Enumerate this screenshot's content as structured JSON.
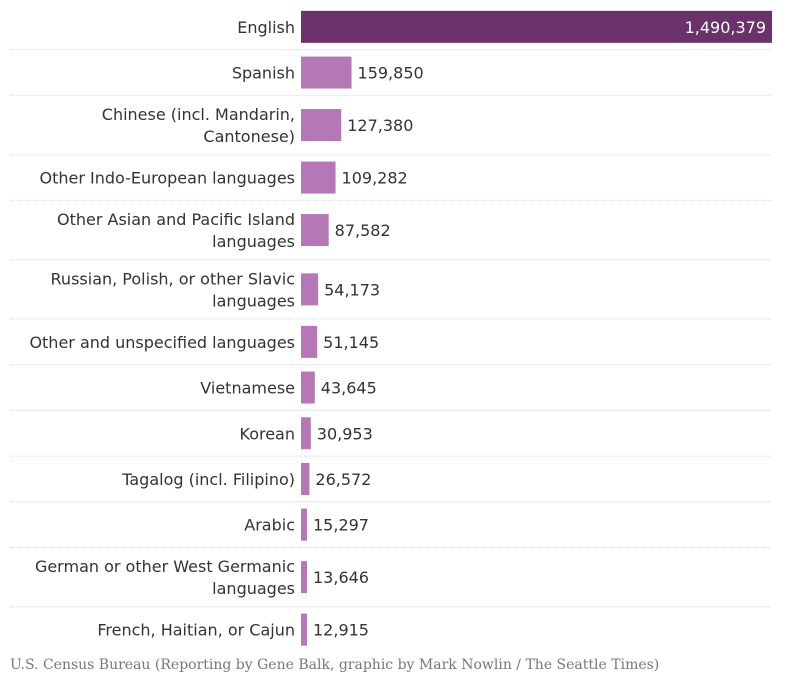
{
  "chart_data": {
    "type": "bar",
    "orientation": "horizontal",
    "categories": [
      [
        "English"
      ],
      [
        "Spanish"
      ],
      [
        "Chinese (incl. Mandarin,",
        "Cantonese)"
      ],
      [
        "Other Indo-European languages"
      ],
      [
        "Other Asian and Pacific Island",
        "languages"
      ],
      [
        "Russian, Polish, or other Slavic",
        "languages"
      ],
      [
        "Other and unspecified languages"
      ],
      [
        "Vietnamese"
      ],
      [
        "Korean"
      ],
      [
        "Tagalog (incl. Filipino)"
      ],
      [
        "Arabic"
      ],
      [
        "German or other West Germanic",
        "languages"
      ],
      [
        "French, Haitian, or Cajun"
      ]
    ],
    "values": [
      1490379,
      159850,
      127380,
      109282,
      87582,
      54173,
      51145,
      43645,
      30953,
      26572,
      15297,
      13646,
      12915
    ],
    "value_labels": [
      "1,490,379",
      "159,850",
      "127,380",
      "109,282",
      "87,582",
      "54,173",
      "51,145",
      "43,645",
      "30,953",
      "26,572",
      "15,297",
      "13,646",
      "12,915"
    ],
    "highlight_index": 0,
    "xlim": [
      0,
      1490379
    ],
    "colors": {
      "highlight": "#6b316b",
      "bar": "#b577b5",
      "grid": "#d9d9d9"
    },
    "grid": false
  },
  "source": "U.S. Census Bureau (Reporting by Gene Balk, graphic by Mark Nowlin / The Seattle Times)"
}
